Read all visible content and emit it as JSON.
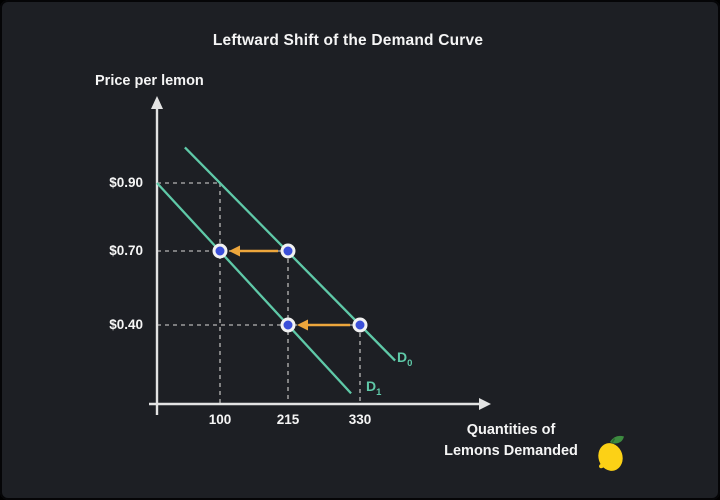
{
  "title": "Leftward Shift of the Demand Curve",
  "y_axis_title": "Price per lemon",
  "x_axis_title": {
    "line1": "Quantities of",
    "line2": "Lemons Demanded"
  },
  "colors": {
    "background": "#1d1f24",
    "text": "#f5f5f5",
    "axis": "#e3e3e3",
    "dashed": "#9b9b9b",
    "curve": "#5fc9a8",
    "point_fill": "#3b4fd8",
    "point_ring": "#f2f2f2",
    "arrow": "#eda63c",
    "lemon_body": "#fcd116",
    "lemon_leaf": "#3d8b40"
  },
  "chart_data": {
    "type": "line",
    "title": "Leftward Shift of the Demand Curve",
    "xlabel": "Quantities of Lemons Demanded",
    "ylabel": "Price per lemon",
    "x_ticks": [
      "100",
      "215",
      "330"
    ],
    "y_ticks": [
      "$0.90",
      "$0.70",
      "$0.40"
    ],
    "legend_position": "on-curve",
    "grid": "dashed guide lines only at labeled points",
    "series": [
      {
        "name": "D0",
        "label_base": "D",
        "label_sub": "0",
        "color": "#5fc9a8",
        "points": [
          {
            "quantity": 100,
            "price": 0.9
          },
          {
            "quantity": 215,
            "price": 0.7
          },
          {
            "quantity": 330,
            "price": 0.4
          }
        ]
      },
      {
        "name": "D1",
        "label_base": "D",
        "label_sub": "1",
        "color": "#5fc9a8",
        "points": [
          {
            "quantity": 0,
            "price": 0.9
          },
          {
            "quantity": 100,
            "price": 0.7
          },
          {
            "quantity": 215,
            "price": 0.4
          }
        ]
      }
    ],
    "highlighted_points": [
      {
        "curve": "D0",
        "quantity": 215,
        "price": 0.7
      },
      {
        "curve": "D1",
        "quantity": 100,
        "price": 0.7
      },
      {
        "curve": "D0",
        "quantity": 330,
        "price": 0.4
      },
      {
        "curve": "D1",
        "quantity": 215,
        "price": 0.4
      }
    ],
    "shift_arrows": [
      {
        "price": 0.7,
        "from_quantity": 215,
        "to_quantity": 100
      },
      {
        "price": 0.4,
        "from_quantity": 330,
        "to_quantity": 215
      }
    ],
    "dashed_guides": [
      {
        "price_label": "$0.90",
        "price": 0.9,
        "quantity": 100
      },
      {
        "price_label": "$0.70",
        "price": 0.7,
        "quantity": 215
      },
      {
        "price_label": "$0.40",
        "price": 0.4,
        "quantity": 330
      }
    ]
  }
}
